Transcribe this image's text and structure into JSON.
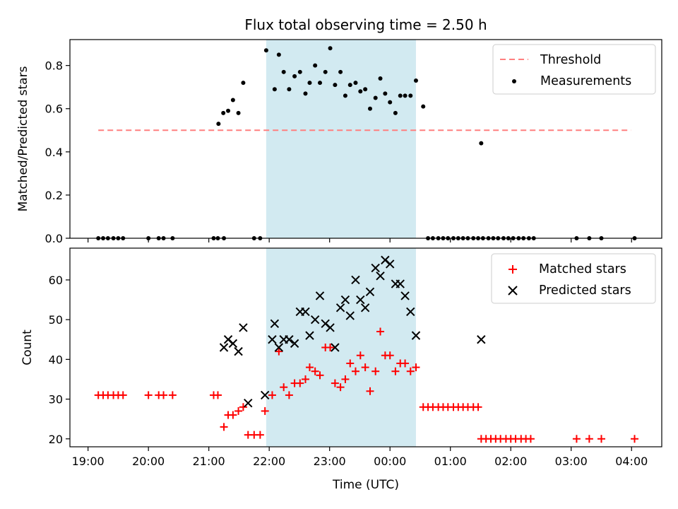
{
  "chart_data": [
    {
      "type": "scatter",
      "title": "Flux total observing time = 2.50 h",
      "xlabel": "",
      "ylabel": "Matched/Predicted stars",
      "ylim": [
        0,
        0.92
      ],
      "yticks": [
        "0.0",
        "0.2",
        "0.4",
        "0.6",
        "0.8"
      ],
      "ytick_values": [
        0,
        0.2,
        0.4,
        0.6,
        0.8
      ],
      "x_unit": "hours since 19:00 UTC",
      "xlim": [
        -0.3,
        9.5
      ],
      "shaded_interval": {
        "start": 2.95,
        "end": 5.43,
        "color": "#add8e6"
      },
      "threshold": {
        "label": "Threshold",
        "value": 0.5,
        "x_start": 0.17,
        "x_end": 8.99,
        "color": "#ff7f7f"
      },
      "measurements": {
        "label": "Measurements",
        "color": "#000000",
        "x": [
          0.17,
          0.25,
          0.33,
          0.42,
          0.5,
          0.58,
          1.0,
          1.17,
          1.25,
          1.4,
          2.08,
          2.15,
          2.25,
          2.75,
          2.85,
          2.95,
          3.09,
          3.16,
          3.24,
          3.33,
          3.42,
          3.51,
          3.6,
          3.67,
          3.76,
          3.84,
          3.93,
          4.01,
          4.09,
          4.18,
          4.26,
          4.34,
          4.43,
          4.51,
          4.59,
          4.67,
          4.76,
          4.84,
          4.92,
          5.0,
          5.09,
          5.17,
          5.25,
          5.34,
          5.43,
          5.55,
          5.63,
          5.71,
          5.8,
          5.88,
          5.96,
          6.05,
          6.13,
          6.21,
          6.29,
          6.38,
          6.46,
          6.54,
          6.63,
          6.71,
          6.79,
          6.88,
          6.96,
          7.04,
          7.13,
          7.21,
          7.3,
          7.38,
          8.09,
          8.3,
          8.5,
          9.05
        ],
        "y": [
          0,
          0,
          0,
          0,
          0,
          0,
          0,
          0,
          0,
          0,
          0,
          0,
          0,
          0,
          0,
          0.87,
          0.69,
          0.85,
          0.77,
          0.69,
          0.75,
          0.77,
          0.67,
          0.72,
          0.8,
          0.72,
          0.77,
          0.88,
          0.71,
          0.77,
          0.66,
          0.71,
          0.72,
          0.68,
          0.69,
          0.6,
          0.65,
          0.74,
          0.67,
          0.63,
          0.58,
          0.66,
          0.66,
          0.66,
          0.73,
          0.61,
          0,
          0,
          0,
          0,
          0,
          0,
          0,
          0,
          0,
          0,
          0,
          0,
          0,
          0,
          0,
          0,
          0,
          0,
          0,
          0,
          0,
          0,
          0,
          0,
          0,
          0
        ]
      },
      "measurements_early": {
        "x": [
          2.16,
          2.24,
          2.32,
          2.4,
          2.49,
          2.57
        ],
        "y": [
          0.53,
          0.58,
          0.59,
          0.64,
          0.58,
          0.72
        ]
      },
      "measurements_late": {
        "x": [
          6.51
        ],
        "y": [
          0.44
        ]
      },
      "legend": [
        "Threshold",
        "Measurements"
      ],
      "legend_position": "top-right"
    },
    {
      "type": "scatter",
      "title": "",
      "xlabel": "Time (UTC)",
      "ylabel": "Count",
      "ylim": [
        18,
        68
      ],
      "yticks": [
        "20",
        "30",
        "40",
        "50",
        "60"
      ],
      "ytick_values": [
        20,
        30,
        40,
        50,
        60
      ],
      "x_unit": "hours since 19:00 UTC",
      "xlim": [
        -0.3,
        9.5
      ],
      "xticks": [
        "19:00",
        "20:00",
        "21:00",
        "22:00",
        "23:00",
        "00:00",
        "01:00",
        "02:00",
        "03:00",
        "04:00"
      ],
      "xtick_values": [
        0,
        1,
        2,
        3,
        4,
        5,
        6,
        7,
        8,
        9
      ],
      "shaded_interval": {
        "start": 2.95,
        "end": 5.43,
        "color": "#add8e6"
      },
      "series": [
        {
          "name": "Matched stars",
          "marker": "+",
          "color": "#ff0000",
          "x": [
            0.17,
            0.25,
            0.33,
            0.42,
            0.5,
            0.58,
            1.0,
            1.17,
            1.25,
            1.4,
            2.08,
            2.15,
            2.25,
            2.32,
            2.4,
            2.49,
            2.57,
            2.65,
            2.75,
            2.85,
            2.93,
            3.05,
            3.16,
            3.24,
            3.33,
            3.42,
            3.51,
            3.6,
            3.67,
            3.76,
            3.84,
            3.93,
            4.01,
            4.09,
            4.18,
            4.26,
            4.34,
            4.43,
            4.51,
            4.59,
            4.67,
            4.76,
            4.84,
            4.92,
            5.0,
            5.09,
            5.17,
            5.25,
            5.34,
            5.43,
            5.55,
            5.63,
            5.71,
            5.8,
            5.88,
            5.96,
            6.05,
            6.13,
            6.21,
            6.29,
            6.38,
            6.46,
            6.51,
            6.59,
            6.67,
            6.75,
            6.83,
            6.92,
            7.0,
            7.08,
            7.17,
            7.25,
            7.33,
            8.09,
            8.3,
            8.5,
            9.05
          ],
          "y": [
            31,
            31,
            31,
            31,
            31,
            31,
            31,
            31,
            31,
            31,
            31,
            31,
            23,
            26,
            26,
            27,
            28,
            21,
            21,
            21,
            27,
            31,
            42,
            33,
            31,
            34,
            34,
            35,
            38,
            37,
            36,
            43,
            43,
            34,
            33,
            35,
            39,
            37,
            41,
            38,
            32,
            37,
            47,
            41,
            41,
            37,
            39,
            39,
            37,
            38,
            28,
            28,
            28,
            28,
            28,
            28,
            28,
            28,
            28,
            28,
            28,
            28,
            20,
            20,
            20,
            20,
            20,
            20,
            20,
            20,
            20,
            20,
            20,
            20,
            20,
            20,
            20
          ]
        },
        {
          "name": "Predicted stars",
          "marker": "x",
          "color": "#000000",
          "x": [
            2.25,
            2.32,
            2.4,
            2.49,
            2.57,
            2.65,
            2.93,
            3.05,
            3.09,
            3.16,
            3.24,
            3.33,
            3.42,
            3.51,
            3.6,
            3.67,
            3.76,
            3.84,
            3.93,
            4.01,
            4.09,
            4.18,
            4.26,
            4.34,
            4.43,
            4.51,
            4.59,
            4.67,
            4.76,
            4.84,
            4.92,
            5.0,
            5.09,
            5.17,
            5.25,
            5.34,
            5.43,
            6.51
          ],
          "y": [
            43,
            45,
            44,
            42,
            48,
            29,
            31,
            45,
            49,
            43,
            45,
            45,
            44,
            52,
            52,
            46,
            50,
            56,
            49,
            48,
            43,
            53,
            55,
            51,
            60,
            55,
            53,
            57,
            63,
            61,
            65,
            64,
            59,
            59,
            56,
            52,
            46,
            45
          ]
        }
      ],
      "legend": [
        "Matched stars",
        "Predicted stars"
      ],
      "legend_position": "top-right"
    }
  ]
}
